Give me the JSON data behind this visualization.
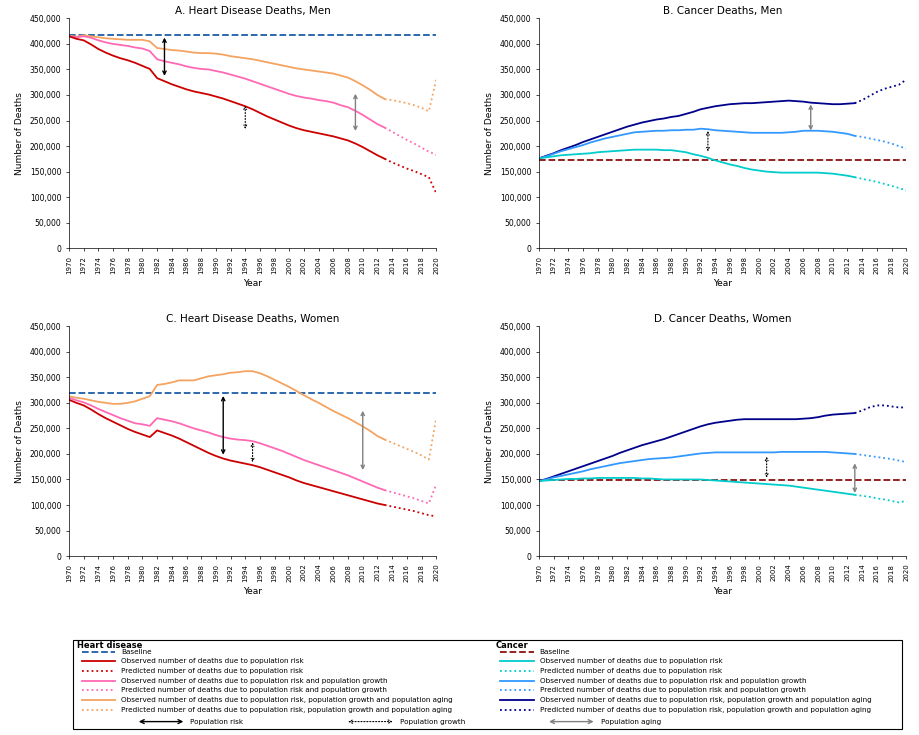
{
  "titles": [
    "A. Heart Disease Deaths, Men",
    "B. Cancer Deaths, Men",
    "C. Heart Disease Deaths, Women",
    "D. Cancer Deaths, Women"
  ],
  "ylabel": "Number of Deaths",
  "xlabel": "Year",
  "ylim": [
    0,
    450000
  ],
  "yticks": [
    0,
    50000,
    100000,
    150000,
    200000,
    250000,
    300000,
    350000,
    400000,
    450000
  ],
  "years_obs": [
    1970,
    1971,
    1972,
    1973,
    1974,
    1975,
    1976,
    1977,
    1978,
    1979,
    1980,
    1981,
    1982,
    1983,
    1984,
    1985,
    1986,
    1987,
    1988,
    1989,
    1990,
    1991,
    1992,
    1993,
    1994,
    1995,
    1996,
    1997,
    1998,
    1999,
    2000,
    2001,
    2002,
    2003,
    2004,
    2005,
    2006,
    2007,
    2008,
    2009,
    2010,
    2011,
    2012,
    2013
  ],
  "years_pred": [
    2013,
    2014,
    2015,
    2016,
    2017,
    2018,
    2019,
    2020
  ],
  "hd_men_baseline": 418000,
  "hd_men_obs_risk": [
    415000,
    410000,
    407000,
    399000,
    390000,
    383000,
    377000,
    372000,
    368000,
    363000,
    357000,
    351000,
    333000,
    327000,
    321000,
    316000,
    311000,
    307000,
    304000,
    301000,
    297000,
    293000,
    288000,
    283000,
    278000,
    272000,
    265000,
    258000,
    252000,
    246000,
    240000,
    235000,
    231000,
    228000,
    225000,
    222000,
    219000,
    215000,
    211000,
    205000,
    198000,
    190000,
    182000,
    175000
  ],
  "hd_men_pred_risk": [
    175000,
    168000,
    162000,
    156000,
    151000,
    145000,
    139000,
    108000
  ],
  "hd_men_obs_risk_growth": [
    415000,
    413000,
    415000,
    412000,
    407000,
    403000,
    400000,
    398000,
    396000,
    393000,
    391000,
    386000,
    370000,
    366000,
    363000,
    360000,
    356000,
    353000,
    351000,
    350000,
    347000,
    344000,
    340000,
    336000,
    332000,
    327000,
    322000,
    317000,
    312000,
    307000,
    302000,
    298000,
    295000,
    293000,
    290000,
    288000,
    285000,
    280000,
    276000,
    269000,
    261000,
    252000,
    243000,
    236000
  ],
  "hd_men_pred_risk_growth": [
    236000,
    228000,
    220000,
    212000,
    205000,
    197000,
    189000,
    183000
  ],
  "hd_men_obs_risk_growth_aging": [
    416000,
    414000,
    417000,
    415000,
    413000,
    411000,
    410000,
    409000,
    408000,
    408000,
    408000,
    405000,
    392000,
    390000,
    388000,
    387000,
    385000,
    383000,
    382000,
    382000,
    381000,
    379000,
    376000,
    374000,
    372000,
    370000,
    367000,
    364000,
    361000,
    358000,
    355000,
    352000,
    350000,
    348000,
    346000,
    344000,
    342000,
    338000,
    334000,
    327000,
    319000,
    310000,
    300000,
    292000
  ],
  "hd_men_pred_risk_growth_aging": [
    292000,
    290000,
    287000,
    284000,
    280000,
    275000,
    268000,
    330000
  ],
  "ca_men_baseline": 172000,
  "ca_men_obs_risk": [
    176000,
    178000,
    180000,
    182000,
    183000,
    184000,
    185000,
    186000,
    188000,
    189000,
    190000,
    191000,
    192000,
    193000,
    193000,
    193000,
    193000,
    192000,
    192000,
    190000,
    188000,
    184000,
    181000,
    177000,
    172000,
    168000,
    164000,
    161000,
    157000,
    154000,
    152000,
    150000,
    149000,
    148000,
    148000,
    148000,
    148000,
    148000,
    148000,
    147000,
    146000,
    144000,
    142000,
    139000
  ],
  "ca_men_pred_risk": [
    139000,
    136000,
    133000,
    130000,
    126000,
    122000,
    118000,
    113000
  ],
  "ca_men_obs_risk_growth": [
    176000,
    180000,
    185000,
    190000,
    194000,
    198000,
    202000,
    207000,
    211000,
    215000,
    218000,
    221000,
    224000,
    227000,
    228000,
    229000,
    230000,
    230000,
    231000,
    231000,
    232000,
    232000,
    234000,
    233000,
    231000,
    230000,
    229000,
    228000,
    227000,
    226000,
    226000,
    226000,
    226000,
    226000,
    227000,
    228000,
    230000,
    230000,
    230000,
    229000,
    228000,
    226000,
    224000,
    220000
  ],
  "ca_men_pred_risk_growth": [
    220000,
    218000,
    215000,
    212000,
    209000,
    205000,
    200000,
    195000
  ],
  "ca_men_obs_risk_growth_aging": [
    176000,
    181000,
    186000,
    192000,
    197000,
    202000,
    208000,
    213000,
    218000,
    223000,
    228000,
    233000,
    238000,
    242000,
    246000,
    249000,
    252000,
    254000,
    257000,
    259000,
    263000,
    267000,
    272000,
    275000,
    278000,
    280000,
    282000,
    283000,
    284000,
    284000,
    285000,
    286000,
    287000,
    288000,
    289000,
    288000,
    287000,
    285000,
    284000,
    283000,
    282000,
    282000,
    283000,
    284000
  ],
  "ca_men_pred_risk_growth_aging": [
    284000,
    290000,
    298000,
    306000,
    312000,
    316000,
    320000,
    330000
  ],
  "hd_women_baseline": 319000,
  "hd_women_obs_risk": [
    306000,
    300000,
    295000,
    287000,
    278000,
    270000,
    263000,
    256000,
    249000,
    243000,
    238000,
    233000,
    246000,
    241000,
    236000,
    230000,
    223000,
    216000,
    209000,
    202000,
    196000,
    191000,
    187000,
    184000,
    181000,
    178000,
    174000,
    169000,
    164000,
    159000,
    154000,
    148000,
    143000,
    139000,
    135000,
    131000,
    127000,
    123000,
    119000,
    115000,
    111000,
    107000,
    103000,
    100000
  ],
  "hd_women_pred_risk": [
    100000,
    97000,
    94000,
    91000,
    88000,
    84000,
    80000,
    78000
  ],
  "hd_women_obs_risk_growth": [
    310000,
    305000,
    301000,
    295000,
    288000,
    282000,
    276000,
    270000,
    265000,
    260000,
    258000,
    255000,
    270000,
    267000,
    264000,
    260000,
    255000,
    250000,
    246000,
    242000,
    237000,
    233000,
    230000,
    228000,
    227000,
    225000,
    221000,
    216000,
    211000,
    206000,
    200000,
    194000,
    188000,
    183000,
    178000,
    173000,
    168000,
    163000,
    158000,
    152000,
    146000,
    140000,
    134000,
    129000
  ],
  "hd_women_pred_risk_growth": [
    129000,
    125000,
    121000,
    117000,
    113000,
    108000,
    103000,
    140000
  ],
  "hd_women_obs_risk_growth_aging": [
    313000,
    310000,
    308000,
    305000,
    302000,
    300000,
    298000,
    298000,
    300000,
    303000,
    308000,
    313000,
    335000,
    337000,
    340000,
    344000,
    344000,
    344000,
    348000,
    352000,
    354000,
    356000,
    359000,
    360000,
    362000,
    362000,
    358000,
    352000,
    345000,
    338000,
    331000,
    323000,
    315000,
    307000,
    300000,
    292000,
    284000,
    277000,
    270000,
    262000,
    254000,
    245000,
    235000,
    228000
  ],
  "hd_women_pred_risk_growth_aging": [
    228000,
    222000,
    216000,
    210000,
    204000,
    197000,
    189000,
    270000
  ],
  "ca_women_baseline": 148000,
  "ca_women_obs_risk": [
    147000,
    148000,
    149000,
    150000,
    151000,
    151000,
    152000,
    152000,
    153000,
    153000,
    153000,
    153000,
    153000,
    153000,
    152000,
    152000,
    151000,
    150000,
    150000,
    150000,
    150000,
    150000,
    150000,
    149000,
    148000,
    147000,
    146000,
    145000,
    144000,
    143000,
    142000,
    141000,
    140000,
    139000,
    138000,
    136000,
    134000,
    132000,
    130000,
    128000,
    126000,
    124000,
    122000,
    120000
  ],
  "ca_women_pred_risk": [
    120000,
    118000,
    116000,
    113000,
    111000,
    108000,
    105000,
    108000
  ],
  "ca_women_obs_risk_growth": [
    147000,
    150000,
    154000,
    157000,
    160000,
    163000,
    166000,
    170000,
    173000,
    176000,
    179000,
    182000,
    184000,
    186000,
    188000,
    190000,
    191000,
    192000,
    193000,
    195000,
    197000,
    199000,
    201000,
    202000,
    203000,
    203000,
    203000,
    203000,
    203000,
    203000,
    203000,
    203000,
    203000,
    204000,
    204000,
    204000,
    204000,
    204000,
    204000,
    204000,
    203000,
    202000,
    201000,
    200000
  ],
  "ca_women_pred_risk_growth": [
    200000,
    198000,
    196000,
    194000,
    192000,
    190000,
    187000,
    184000
  ],
  "ca_women_obs_risk_growth_aging": [
    147000,
    151000,
    156000,
    161000,
    166000,
    171000,
    176000,
    181000,
    186000,
    191000,
    196000,
    202000,
    207000,
    212000,
    217000,
    221000,
    225000,
    229000,
    234000,
    239000,
    244000,
    249000,
    254000,
    258000,
    261000,
    263000,
    265000,
    267000,
    268000,
    268000,
    268000,
    268000,
    268000,
    268000,
    268000,
    268000,
    269000,
    270000,
    272000,
    275000,
    277000,
    278000,
    279000,
    280000
  ],
  "ca_women_pred_risk_growth_aging": [
    280000,
    285000,
    291000,
    295000,
    295000,
    293000,
    291000,
    291000
  ],
  "hd_color_baseline": "#1B5EA6",
  "hd_color_obs_risk": "#CC0000",
  "hd_color_obs_risk_growth": "#FF69B4",
  "hd_color_obs_risk_growth_aging": "#F4A460",
  "ca_color_baseline": "#8B1010",
  "ca_color_obs_risk": "#00CCCC",
  "ca_color_obs_risk_growth": "#3399FF",
  "ca_color_obs_risk_growth_aging": "#00008B"
}
